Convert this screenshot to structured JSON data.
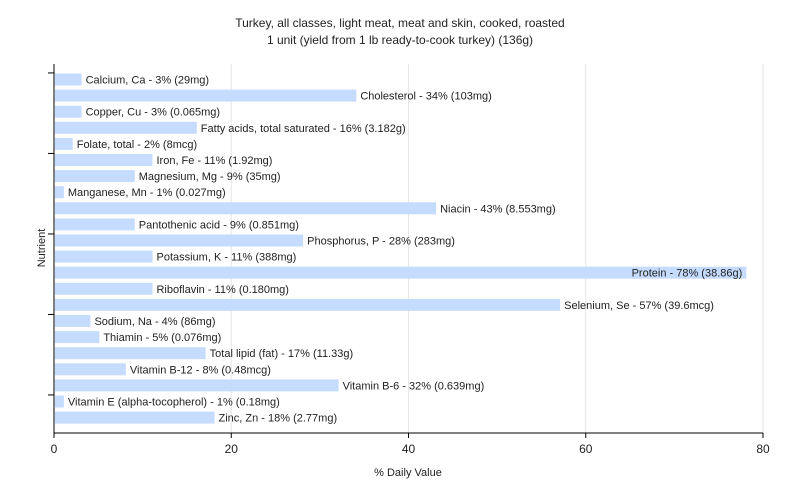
{
  "chart_data": {
    "type": "bar",
    "orientation": "horizontal",
    "title": "Turkey, all classes, light meat, meat and skin, cooked, roasted",
    "subtitle": "1 unit (yield from 1 lb ready-to-cook turkey) (136g)",
    "xlabel": "% Daily Value",
    "ylabel": "Nutrient",
    "xlim": [
      0,
      80
    ],
    "xticks": [
      0,
      20,
      40,
      60,
      80
    ],
    "grid": true,
    "bar_color": "#c6dcff",
    "categories": [
      "Calcium, Ca",
      "Cholesterol",
      "Copper, Cu",
      "Fatty acids, total saturated",
      "Folate, total",
      "Iron, Fe",
      "Magnesium, Mg",
      "Manganese, Mn",
      "Niacin",
      "Pantothenic acid",
      "Phosphorus, P",
      "Potassium, K",
      "Protein",
      "Riboflavin",
      "Selenium, Se",
      "Sodium, Na",
      "Thiamin",
      "Total lipid (fat)",
      "Vitamin B-12",
      "Vitamin B-6",
      "Vitamin E (alpha-tocopherol)",
      "Zinc, Zn"
    ],
    "values": [
      3,
      34,
      3,
      16,
      2,
      11,
      9,
      1,
      43,
      9,
      28,
      11,
      78,
      11,
      57,
      4,
      5,
      17,
      8,
      32,
      1,
      18
    ],
    "labels": [
      "Calcium, Ca - 3% (29mg)",
      "Cholesterol - 34% (103mg)",
      "Copper, Cu - 3% (0.065mg)",
      "Fatty acids, total saturated - 16% (3.182g)",
      "Folate, total - 2% (8mcg)",
      "Iron, Fe - 11% (1.92mg)",
      "Magnesium, Mg - 9% (35mg)",
      "Manganese, Mn - 1% (0.027mg)",
      "Niacin - 43% (8.553mg)",
      "Pantothenic acid - 9% (0.851mg)",
      "Phosphorus, P - 28% (283mg)",
      "Potassium, K - 11% (388mg)",
      "Protein - 78% (38.86g)",
      "Riboflavin - 11% (0.180mg)",
      "Selenium, Se - 57% (39.6mcg)",
      "Sodium, Na - 4% (86mg)",
      "Thiamin - 5% (0.076mg)",
      "Total lipid (fat) - 17% (11.33g)",
      "Vitamin B-12 - 8% (0.48mcg)",
      "Vitamin B-6 - 32% (0.639mg)",
      "Vitamin E (alpha-tocopherol) - 1% (0.18mg)",
      "Zinc, Zn - 18% (2.77mg)"
    ]
  }
}
